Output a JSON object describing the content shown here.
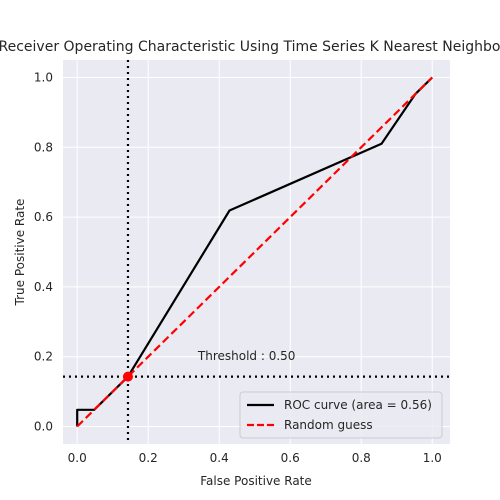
{
  "chart_data": {
    "type": "line",
    "title": "Receiver Operating Characteristic Using Time Series K Nearest Neighbors",
    "xlabel": "False Positive Rate",
    "ylabel": "True Positive Rate",
    "xlim": [
      -0.04,
      1.05
    ],
    "ylim": [
      -0.05,
      1.05
    ],
    "xticks": [
      0.0,
      0.2,
      0.4,
      0.6,
      0.8,
      1.0
    ],
    "yticks": [
      0.0,
      0.2,
      0.4,
      0.6,
      0.8,
      1.0
    ],
    "xtick_labels": [
      "0.0",
      "0.2",
      "0.4",
      "0.6",
      "0.8",
      "1.0"
    ],
    "ytick_labels": [
      "0.0",
      "0.2",
      "0.4",
      "0.6",
      "0.8",
      "1.0"
    ],
    "grid": true,
    "legend_position": "lower-right",
    "series": [
      {
        "name": "ROC curve (area = 0.56)",
        "color": "#000000",
        "style": "solid",
        "x": [
          0.0,
          0.0,
          0.048,
          0.143,
          0.429,
          0.857,
          0.952,
          1.0
        ],
        "y": [
          0.0,
          0.048,
          0.048,
          0.143,
          0.619,
          0.81,
          0.952,
          1.0
        ]
      },
      {
        "name": "Random guess",
        "color": "#ff0000",
        "style": "dashed",
        "x": [
          0.0,
          1.0
        ],
        "y": [
          0.0,
          1.0
        ]
      }
    ],
    "threshold": {
      "x": 0.143,
      "y": 0.143,
      "label": "Threshold : 0.50",
      "label_x": 0.34,
      "label_y": 0.19,
      "marker_color": "#ff0000"
    }
  }
}
